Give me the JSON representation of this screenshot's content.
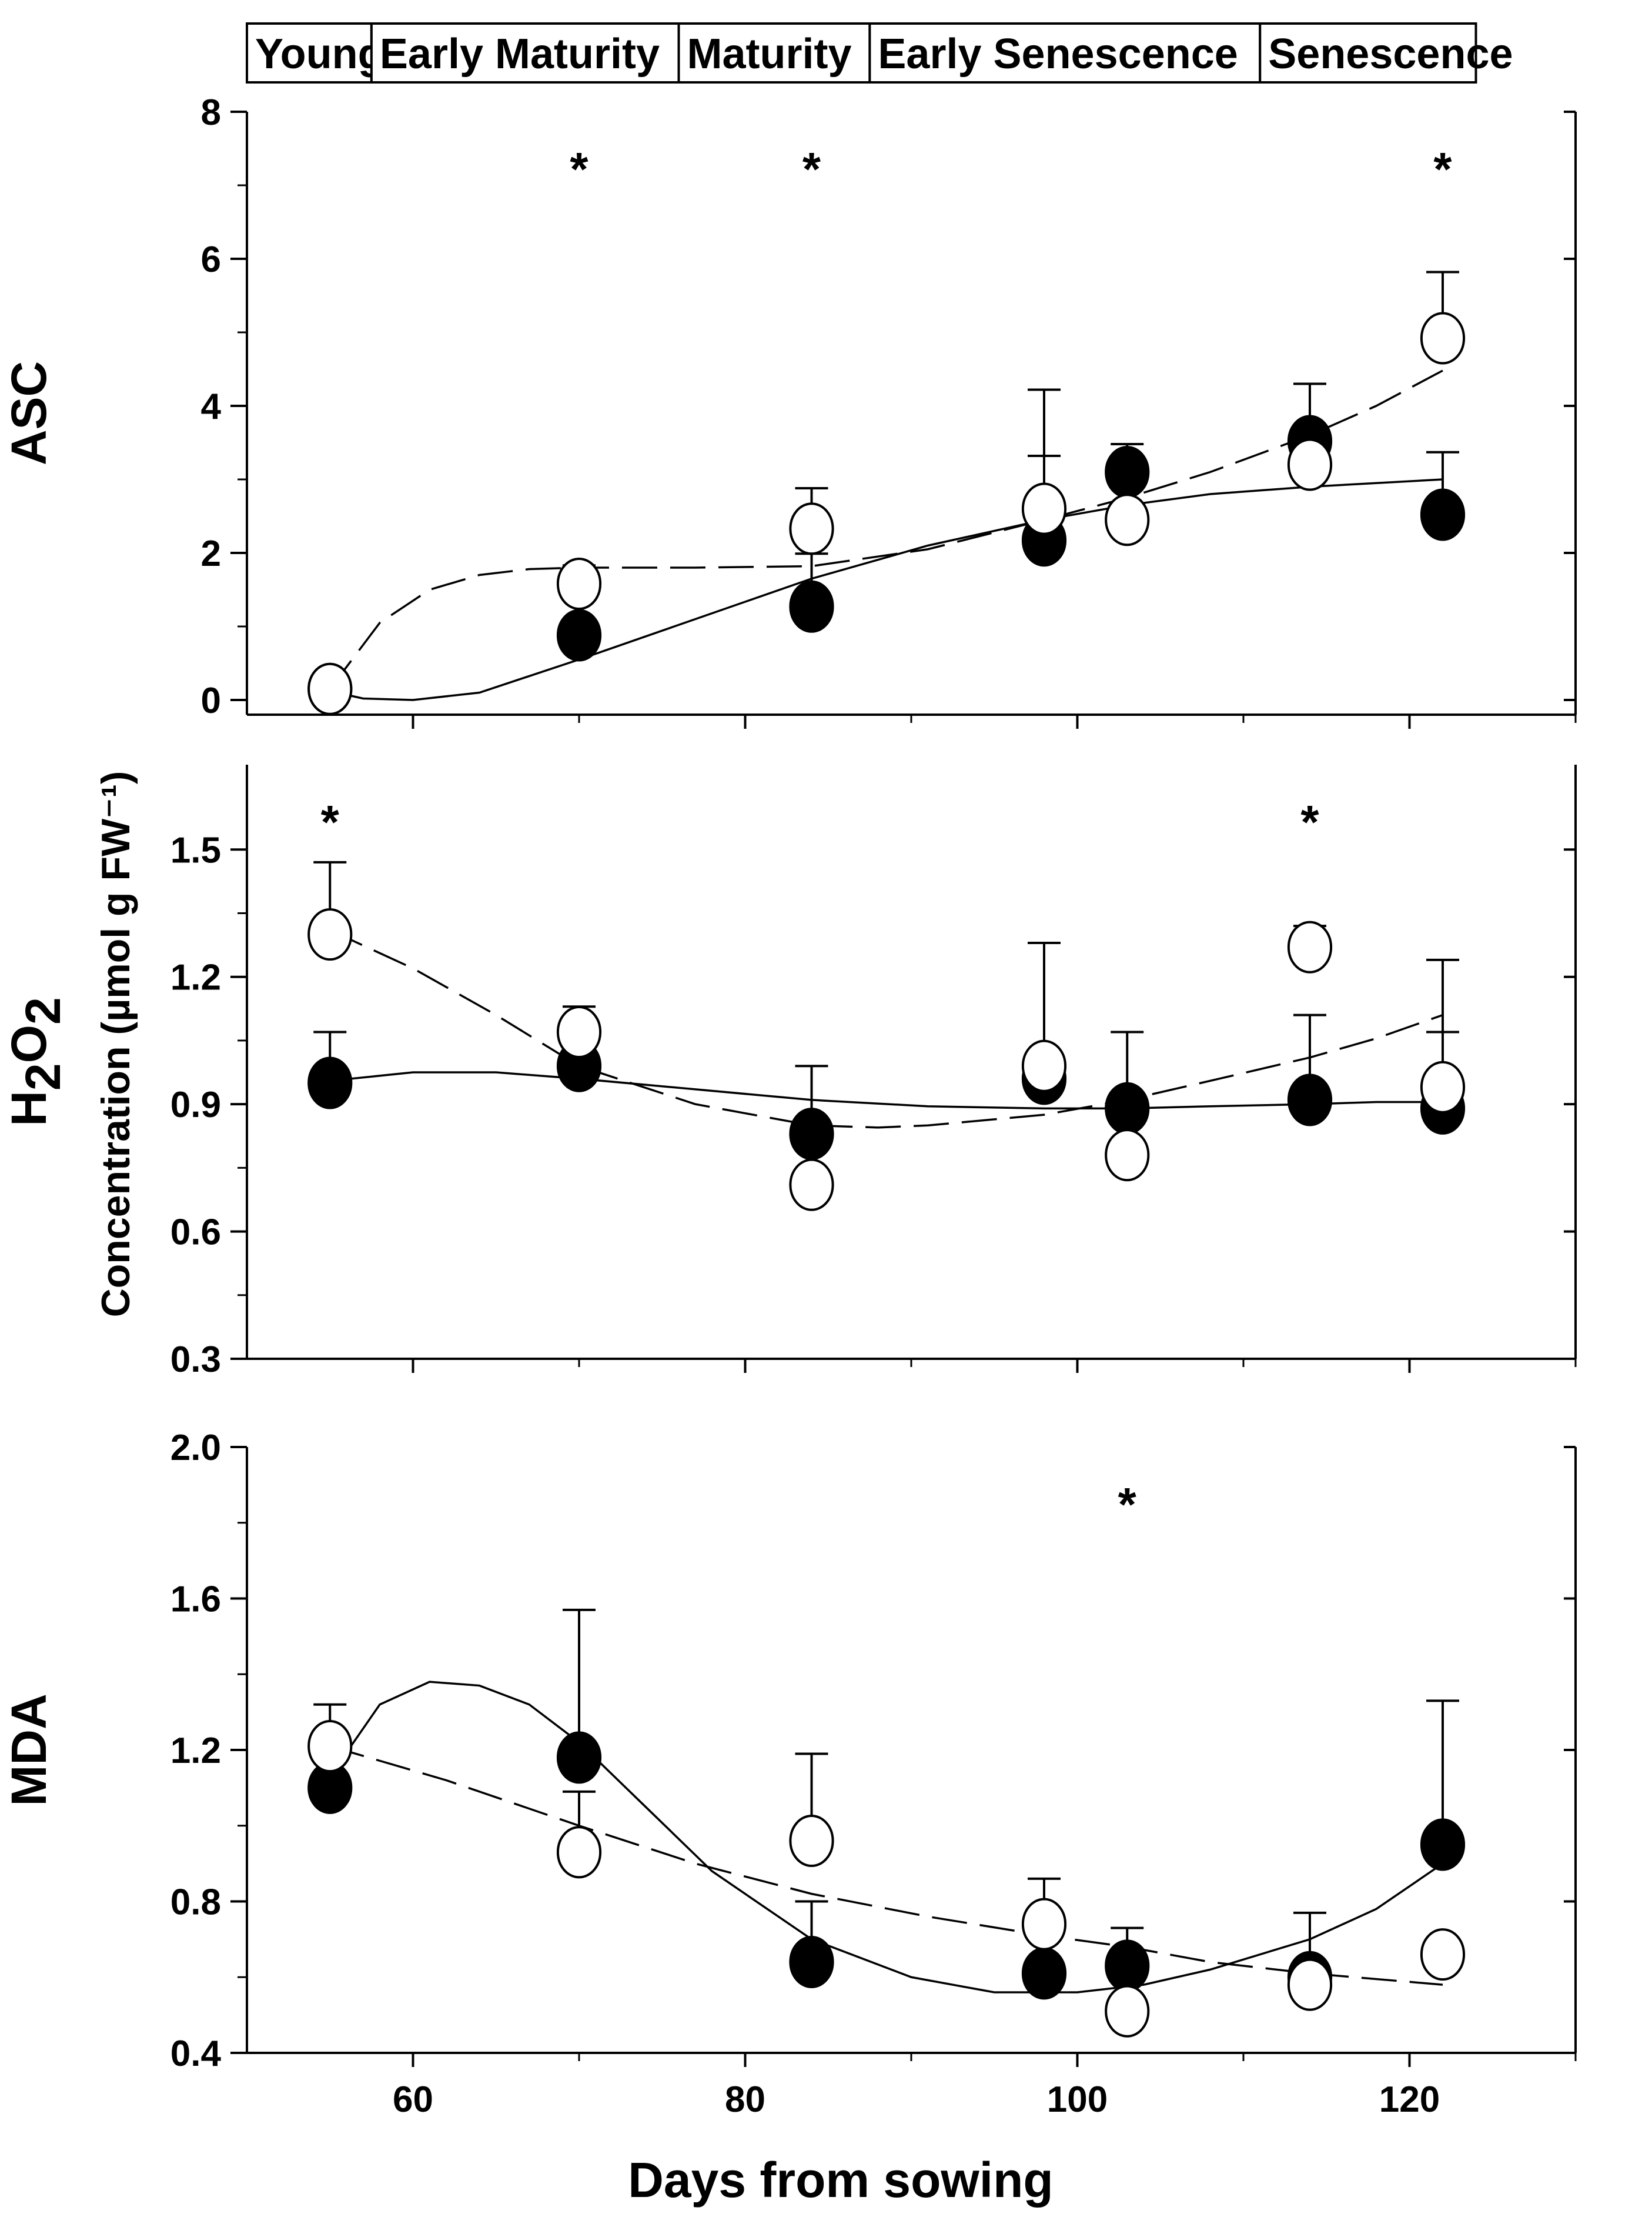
{
  "chart_data": {
    "type": "scatter",
    "stages": [
      "Young",
      "Early Maturity",
      "Maturity",
      "Early Senescence",
      "Senescence"
    ],
    "stage_bounds": [
      50,
      57.5,
      76,
      87.5,
      111,
      124
    ],
    "xlabel": "Days from sowing",
    "common_ylabel": "Concentration (µmol g FW⁻¹)",
    "xlim": [
      50,
      130
    ],
    "x_ticks": [
      60,
      80,
      100,
      120
    ],
    "x_tick_labels": [
      "60",
      "80",
      "100",
      "120"
    ],
    "significance_marker": "*",
    "panels": [
      {
        "ylabel": "ASC",
        "ylim": [
          -0.2,
          8
        ],
        "y_ticks": [
          0,
          2,
          4,
          6,
          8
        ],
        "y_tick_labels": [
          "0",
          "2",
          "4",
          "6",
          "8"
        ],
        "x": [
          55,
          70,
          84,
          98,
          103,
          114,
          122
        ],
        "series": [
          {
            "marker": "filled",
            "values": [
              0.15,
              0.88,
              1.27,
              2.17,
              3.1,
              3.52,
              2.52
            ],
            "errors": [
              0.0,
              0.2,
              0.72,
              1.15,
              0.38,
              0.78,
              0.85
            ],
            "fit": "solid",
            "fit_x": [
              55,
              57,
              60,
              64,
              70,
              77,
              84,
              91,
              98,
              103,
              108,
              114,
              118,
              122
            ],
            "fit_y": [
              0.12,
              0.02,
              0.0,
              0.1,
              0.55,
              1.1,
              1.65,
              2.1,
              2.45,
              2.65,
              2.8,
              2.9,
              2.95,
              3.0
            ]
          },
          {
            "marker": "open",
            "values": [
              0.15,
              1.58,
              2.33,
              2.6,
              2.45,
              3.2,
              4.92
            ],
            "errors": [
              0.0,
              0.25,
              0.55,
              1.62,
              0.0,
              0.1,
              0.9
            ],
            "fit": "dashed",
            "fit_x": [
              55,
              58,
              61,
              64,
              67,
              70,
              77,
              84,
              91,
              98,
              103,
              108,
              114,
              118,
              122
            ],
            "fit_y": [
              0.15,
              1.05,
              1.5,
              1.7,
              1.78,
              1.8,
              1.8,
              1.82,
              2.05,
              2.45,
              2.75,
              3.1,
              3.6,
              4.0,
              4.48
            ]
          }
        ],
        "significance_x": [
          70,
          84,
          122
        ]
      },
      {
        "ylabel": "H2O2",
        "ylim": [
          0.3,
          1.7
        ],
        "y_ticks": [
          0.3,
          0.6,
          0.9,
          1.2,
          1.5
        ],
        "y_tick_labels": [
          "0.3",
          "0.6",
          "0.9",
          "1.2",
          "1.5"
        ],
        "x": [
          55,
          70,
          84,
          98,
          103,
          114,
          122
        ],
        "series": [
          {
            "marker": "filled",
            "values": [
              0.95,
              0.99,
              0.83,
              0.96,
              0.89,
              0.91,
              0.89
            ],
            "errors": [
              0.12,
              0.0,
              0.16,
              0.0,
              0.18,
              0.2,
              0.18
            ],
            "fit": "solid",
            "fit_x": [
              55,
              60,
              65,
              70,
              77,
              84,
              91,
              98,
              103,
              108,
              114,
              118,
              122
            ],
            "fit_y": [
              0.955,
              0.975,
              0.975,
              0.96,
              0.935,
              0.91,
              0.895,
              0.89,
              0.89,
              0.895,
              0.9,
              0.905,
              0.905
            ]
          },
          {
            "marker": "open",
            "values": [
              1.3,
              1.07,
              0.71,
              0.99,
              0.78,
              1.27,
              0.94
            ],
            "errors": [
              0.17,
              0.06,
              0.0,
              0.29,
              0.0,
              0.05,
              0.3
            ],
            "fit": "dashed",
            "fit_x": [
              55,
              60,
              65,
              70,
              77,
              84,
              88,
              91,
              98,
              103,
              108,
              114,
              118,
              122
            ],
            "fit_y": [
              1.31,
              1.22,
              1.11,
              0.99,
              0.9,
              0.85,
              0.845,
              0.85,
              0.875,
              0.91,
              0.955,
              1.01,
              1.055,
              1.11
            ]
          }
        ],
        "significance_x": [
          55,
          114
        ]
      },
      {
        "ylabel": "MDA",
        "ylim": [
          0.4,
          2.0
        ],
        "y_ticks": [
          0.4,
          0.8,
          1.2,
          1.6,
          2.0
        ],
        "y_tick_labels": [
          "0.4",
          "0.8",
          "1.2",
          "1.6",
          "2.0"
        ],
        "x": [
          55,
          70,
          84,
          98,
          103,
          114,
          122
        ],
        "series": [
          {
            "marker": "filled",
            "values": [
              1.1,
              1.18,
              0.64,
              0.61,
              0.63,
              0.6,
              0.95
            ],
            "errors": [
              0.0,
              0.39,
              0.16,
              0.0,
              0.1,
              0.17,
              0.38
            ],
            "fit": "solid",
            "fit_x": [
              55,
              58,
              61,
              64,
              67,
              70,
              74,
              78,
              84,
              90,
              95,
              100,
              104,
              108,
              114,
              118,
              122
            ],
            "fit_y": [
              1.13,
              1.32,
              1.38,
              1.37,
              1.32,
              1.22,
              1.05,
              0.88,
              0.7,
              0.6,
              0.56,
              0.56,
              0.58,
              0.62,
              0.7,
              0.78,
              0.9
            ]
          },
          {
            "marker": "open",
            "values": [
              1.21,
              0.93,
              0.96,
              0.74,
              0.51,
              0.58,
              0.66
            ],
            "errors": [
              0.11,
              0.16,
              0.23,
              0.12,
              0.0,
              0.0,
              0.03
            ],
            "fit": "dashed",
            "fit_x": [
              55,
              62,
              70,
              77,
              84,
              91,
              98,
              103,
              108,
              114,
              122
            ],
            "fit_y": [
              1.21,
              1.12,
              1.0,
              0.9,
              0.82,
              0.76,
              0.71,
              0.68,
              0.64,
              0.61,
              0.58
            ]
          }
        ],
        "significance_x": [
          103
        ]
      }
    ]
  }
}
